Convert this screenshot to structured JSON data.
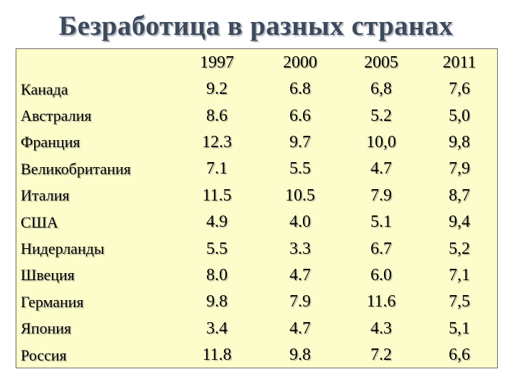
{
  "title": "Безработица в разных странах",
  "table": {
    "corner": "",
    "years": [
      "1997",
      "2000",
      "2005",
      "2011"
    ],
    "rows": [
      {
        "country": "Канада",
        "values": [
          "9.2",
          "6.8",
          "6,8",
          "7,6"
        ]
      },
      {
        "country": "Австралия",
        "values": [
          "8.6",
          "6.6",
          "5.2",
          "5,0"
        ]
      },
      {
        "country": "Франция",
        "values": [
          "12.3",
          "9.7",
          "10,0",
          "9,8"
        ]
      },
      {
        "country": "Великобритания",
        "values": [
          "7.1",
          "5.5",
          "4.7",
          "7,9"
        ]
      },
      {
        "country": "Италия",
        "values": [
          "11.5",
          "10.5",
          "7.9",
          "8,7"
        ]
      },
      {
        "country": "США",
        "values": [
          "4.9",
          "4.0",
          "5.1",
          "9,4"
        ]
      },
      {
        "country": "Нидерланды",
        "values": [
          "5.5",
          "3.3",
          "6.7",
          "5,2"
        ]
      },
      {
        "country": "Швеция",
        "values": [
          "8.0",
          "4.7",
          "6.0",
          "7,1"
        ]
      },
      {
        "country": "Германия",
        "values": [
          "9.8",
          "7.9",
          "11.6",
          "7,5"
        ]
      },
      {
        "country": "Япония",
        "values": [
          "3.4",
          "4.7",
          "4.3",
          "5,1"
        ]
      },
      {
        "country": "Россия",
        "values": [
          "11.8",
          "9.8",
          "7.2",
          "6,6"
        ]
      }
    ]
  },
  "colors": {
    "title": "#3d4a5c",
    "table_background": "#fdfdcb",
    "table_border": "#6b6b6b",
    "text": "#000000"
  }
}
